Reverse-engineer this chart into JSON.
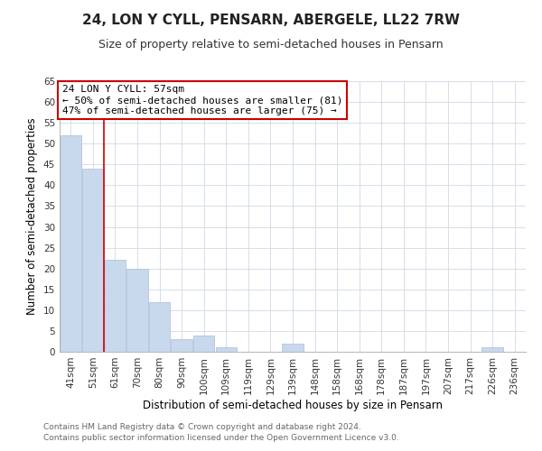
{
  "title": "24, LON Y CYLL, PENSARN, ABERGELE, LL22 7RW",
  "subtitle": "Size of property relative to semi-detached houses in Pensarn",
  "xlabel": "Distribution of semi-detached houses by size in Pensarn",
  "ylabel": "Number of semi-detached properties",
  "categories": [
    "41sqm",
    "51sqm",
    "61sqm",
    "70sqm",
    "80sqm",
    "90sqm",
    "100sqm",
    "109sqm",
    "119sqm",
    "129sqm",
    "139sqm",
    "148sqm",
    "158sqm",
    "168sqm",
    "178sqm",
    "187sqm",
    "197sqm",
    "207sqm",
    "217sqm",
    "226sqm",
    "236sqm"
  ],
  "values": [
    52,
    44,
    22,
    20,
    12,
    3,
    4,
    1,
    0,
    0,
    2,
    0,
    0,
    0,
    0,
    0,
    0,
    0,
    0,
    1,
    0
  ],
  "bar_color": "#c8d9ee",
  "bar_edge_color": "#aabdd6",
  "highlight_color": "#cc0000",
  "ylim": [
    0,
    65
  ],
  "yticks": [
    0,
    5,
    10,
    15,
    20,
    25,
    30,
    35,
    40,
    45,
    50,
    55,
    60,
    65
  ],
  "annotation_title": "24 LON Y CYLL: 57sqm",
  "annotation_line1": "← 50% of semi-detached houses are smaller (81)",
  "annotation_line2": "47% of semi-detached houses are larger (75) →",
  "footer_line1": "Contains HM Land Registry data © Crown copyright and database right 2024.",
  "footer_line2": "Contains public sector information licensed under the Open Government Licence v3.0.",
  "background_color": "#ffffff",
  "grid_color": "#d0d8e8",
  "title_fontsize": 11,
  "subtitle_fontsize": 9,
  "axis_label_fontsize": 8.5,
  "tick_fontsize": 7.5,
  "annotation_fontsize": 8,
  "footer_fontsize": 6.5
}
